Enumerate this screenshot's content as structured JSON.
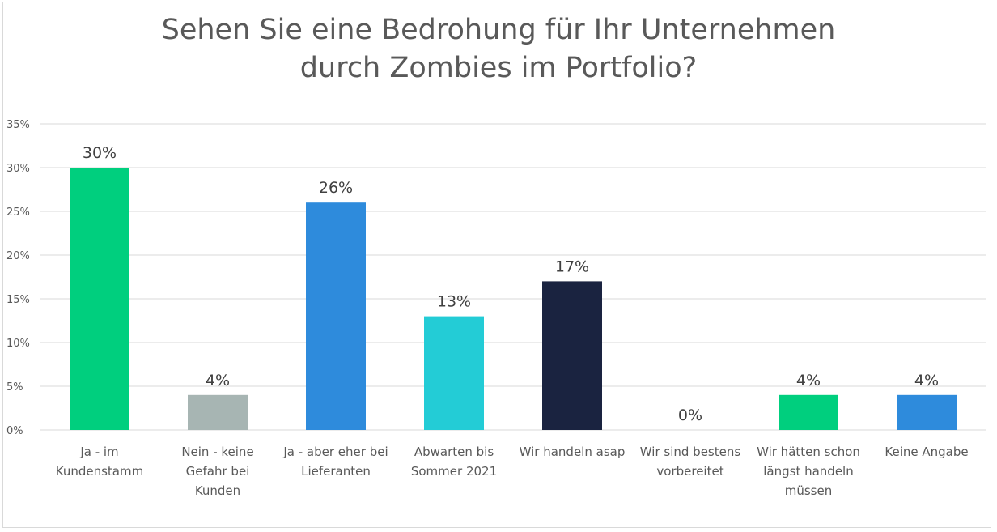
{
  "chart_data": {
    "type": "bar",
    "title": "Sehen Sie eine Bedrohung für Ihr Unternehmen durch Zombies im Portfolio?",
    "title_lines": [
      "Sehen Sie eine Bedrohung für Ihr Unternehmen",
      "durch Zombies im Portfolio?"
    ],
    "categories": [
      [
        "Ja - im",
        "Kundenstamm"
      ],
      [
        "Nein - keine",
        "Gefahr bei",
        "Kunden"
      ],
      [
        "Ja - aber eher bei",
        "Lieferanten"
      ],
      [
        "Abwarten bis",
        "Sommer 2021"
      ],
      [
        "Wir handeln asap"
      ],
      [
        "Wir sind bestens",
        "vorbereitet"
      ],
      [
        "Wir hätten schon",
        "längst handeln",
        "müssen"
      ],
      [
        "Keine Angabe"
      ]
    ],
    "values": [
      30,
      4,
      26,
      13,
      17,
      0,
      4,
      4
    ],
    "data_labels": [
      "30%",
      "4%",
      "26%",
      "13%",
      "17%",
      "0%",
      "4%",
      "4%"
    ],
    "colors": [
      "#00CF7E",
      "#A7B5B3",
      "#2E8BDC",
      "#23CCD6",
      "#1A2340",
      "#A7B5B3",
      "#00CF7E",
      "#2E8BDC"
    ],
    "yticks": [
      "0%",
      "5%",
      "10%",
      "15%",
      "20%",
      "25%",
      "30%",
      "35%"
    ],
    "ylim": [
      0,
      35
    ],
    "grid": true,
    "xlabel": "",
    "ylabel": ""
  }
}
